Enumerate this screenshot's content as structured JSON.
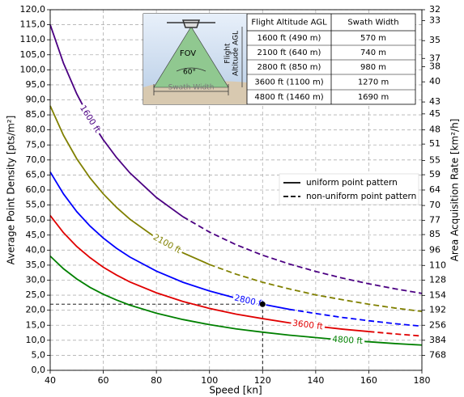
{
  "chart_data": {
    "type": "line",
    "xlabel": "Speed [kn]",
    "ylabel": "Average Point Density [pts/m²]",
    "y2label": "Area Acquisition Rate [km²/h]",
    "x": [
      40,
      45,
      50,
      55,
      60,
      65,
      70,
      80,
      90,
      100,
      110,
      120,
      130,
      140,
      150,
      160,
      170,
      180
    ],
    "series": [
      {
        "name": "1600 ft",
        "color": "#4b0082",
        "nonuniform_from": 90,
        "values": [
          115,
          102.2,
          92,
          83.6,
          76.7,
          70.8,
          65.7,
          57.5,
          51.1,
          46,
          41.8,
          38.3,
          35.4,
          32.9,
          30.7,
          28.8,
          27.1,
          25.6
        ]
      },
      {
        "name": "2100 ft",
        "color": "#808000",
        "nonuniform_from": 100,
        "values": [
          88,
          78.2,
          70.4,
          64,
          58.7,
          54.2,
          50.3,
          44,
          39.1,
          35.2,
          32,
          29.3,
          27.1,
          25.1,
          23.5,
          22,
          20.7,
          19.6
        ]
      },
      {
        "name": "2800 ft",
        "color": "#0000ff",
        "nonuniform_from": 130,
        "values": [
          66,
          58.7,
          52.8,
          48,
          44,
          40.6,
          37.7,
          33,
          29.3,
          26.4,
          24,
          22,
          20.3,
          18.9,
          17.6,
          16.5,
          15.5,
          14.7
        ]
      },
      {
        "name": "3600 ft",
        "color": "#e00000",
        "nonuniform_from": 160,
        "values": [
          51.5,
          45.8,
          41.2,
          37.5,
          34.3,
          31.7,
          29.4,
          25.8,
          22.9,
          20.6,
          18.7,
          17.2,
          15.8,
          14.7,
          13.7,
          12.9,
          12.1,
          11.4
        ]
      },
      {
        "name": "4800 ft",
        "color": "#008000",
        "values": [
          38,
          33.8,
          30.4,
          27.6,
          25.3,
          23.4,
          21.7,
          19,
          16.9,
          15.2,
          13.8,
          12.7,
          11.7,
          10.9,
          10.1,
          9.5,
          8.9,
          8.4
        ]
      }
    ],
    "marker": {
      "x": 120,
      "y": 22
    },
    "legend": {
      "position": "center right",
      "entries": [
        "uniform point pattern",
        "non-uniform point pattern"
      ]
    },
    "xlim": [
      40,
      180
    ],
    "xticks": [
      40,
      60,
      80,
      100,
      120,
      140,
      160,
      180
    ],
    "ylim": [
      0,
      120
    ],
    "yticks": [
      {
        "value": 0,
        "label": "0,0"
      },
      {
        "value": 5,
        "label": "5,0"
      },
      {
        "value": 10,
        "label": "10,0"
      },
      {
        "value": 15,
        "label": "15,0"
      },
      {
        "value": 20,
        "label": "20,0"
      },
      {
        "value": 25,
        "label": "25,0"
      },
      {
        "value": 30,
        "label": "30,0"
      },
      {
        "value": 35,
        "label": "35,0"
      },
      {
        "value": 40,
        "label": "40,0"
      },
      {
        "value": 45,
        "label": "45,0"
      },
      {
        "value": 50,
        "label": "50,0"
      },
      {
        "value": 55,
        "label": "55,0"
      },
      {
        "value": 60,
        "label": "60,0"
      },
      {
        "value": 65,
        "label": "65,0"
      },
      {
        "value": 70,
        "label": "70,0"
      },
      {
        "value": 75,
        "label": "75,0"
      },
      {
        "value": 80,
        "label": "80,0"
      },
      {
        "value": 85,
        "label": "85,0"
      },
      {
        "value": 90,
        "label": "90,0"
      },
      {
        "value": 95,
        "label": "95,0"
      },
      {
        "value": 100,
        "label": "100,0"
      },
      {
        "value": 105,
        "label": "105,0"
      },
      {
        "value": 110,
        "label": "110,0"
      },
      {
        "value": 115,
        "label": "115,0"
      },
      {
        "value": 120,
        "label": "120,0"
      }
    ],
    "y2scale": "reciprocal",
    "y2lim": [
      32,
      768
    ],
    "y2ticks": [
      32,
      33,
      35,
      37,
      38,
      40,
      43,
      45,
      48,
      51,
      55,
      59,
      64,
      70,
      77,
      85,
      96,
      110,
      128,
      154,
      192,
      256,
      384,
      768
    ],
    "grid": true,
    "inset": {
      "fov_label": "FOV",
      "angle_label": "60°",
      "swath_label": "Swath Width",
      "altitude_label": [
        "Flight",
        "Altitude AGL"
      ],
      "columns": [
        "Flight Altitude AGL",
        "Swath Width"
      ],
      "rows": [
        [
          "1600 ft (490 m)",
          "570 m"
        ],
        [
          "2100 ft (640 m)",
          "740 m"
        ],
        [
          "2800 ft (850 m)",
          "980 m"
        ],
        [
          "3600 ft (1100 m)",
          "1270 m"
        ],
        [
          "4800 ft (1460 m)",
          "1690 m"
        ]
      ]
    }
  }
}
